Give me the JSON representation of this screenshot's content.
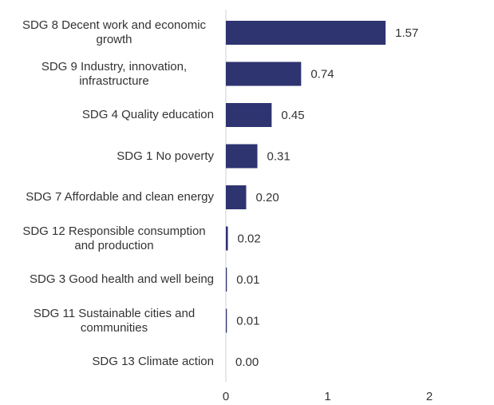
{
  "chart_data": {
    "type": "bar",
    "orientation": "horizontal",
    "categories": [
      "SDG 8 Decent work and economic growth",
      "SDG 9 Industry, innovation, infrastructure",
      "SDG 4 Quality education",
      "SDG 1 No poverty",
      "SDG 7 Affordable and clean energy",
      "SDG 12 Responsible consumption and production",
      "SDG 3 Good health and well being",
      "SDG 11 Sustainable cities and communities",
      "SDG 13 Climate action"
    ],
    "values": [
      1.57,
      0.74,
      0.45,
      0.31,
      0.2,
      0.02,
      0.01,
      0.01,
      0.0
    ],
    "value_labels": [
      "1.57",
      "0.74",
      "0.45",
      "0.31",
      "0.20",
      "0.02",
      "0.01",
      "0.01",
      "0.00"
    ],
    "color": "#2e3470",
    "xlim": [
      0,
      2
    ],
    "xticks": [
      0,
      1,
      2
    ],
    "grid": false
  }
}
